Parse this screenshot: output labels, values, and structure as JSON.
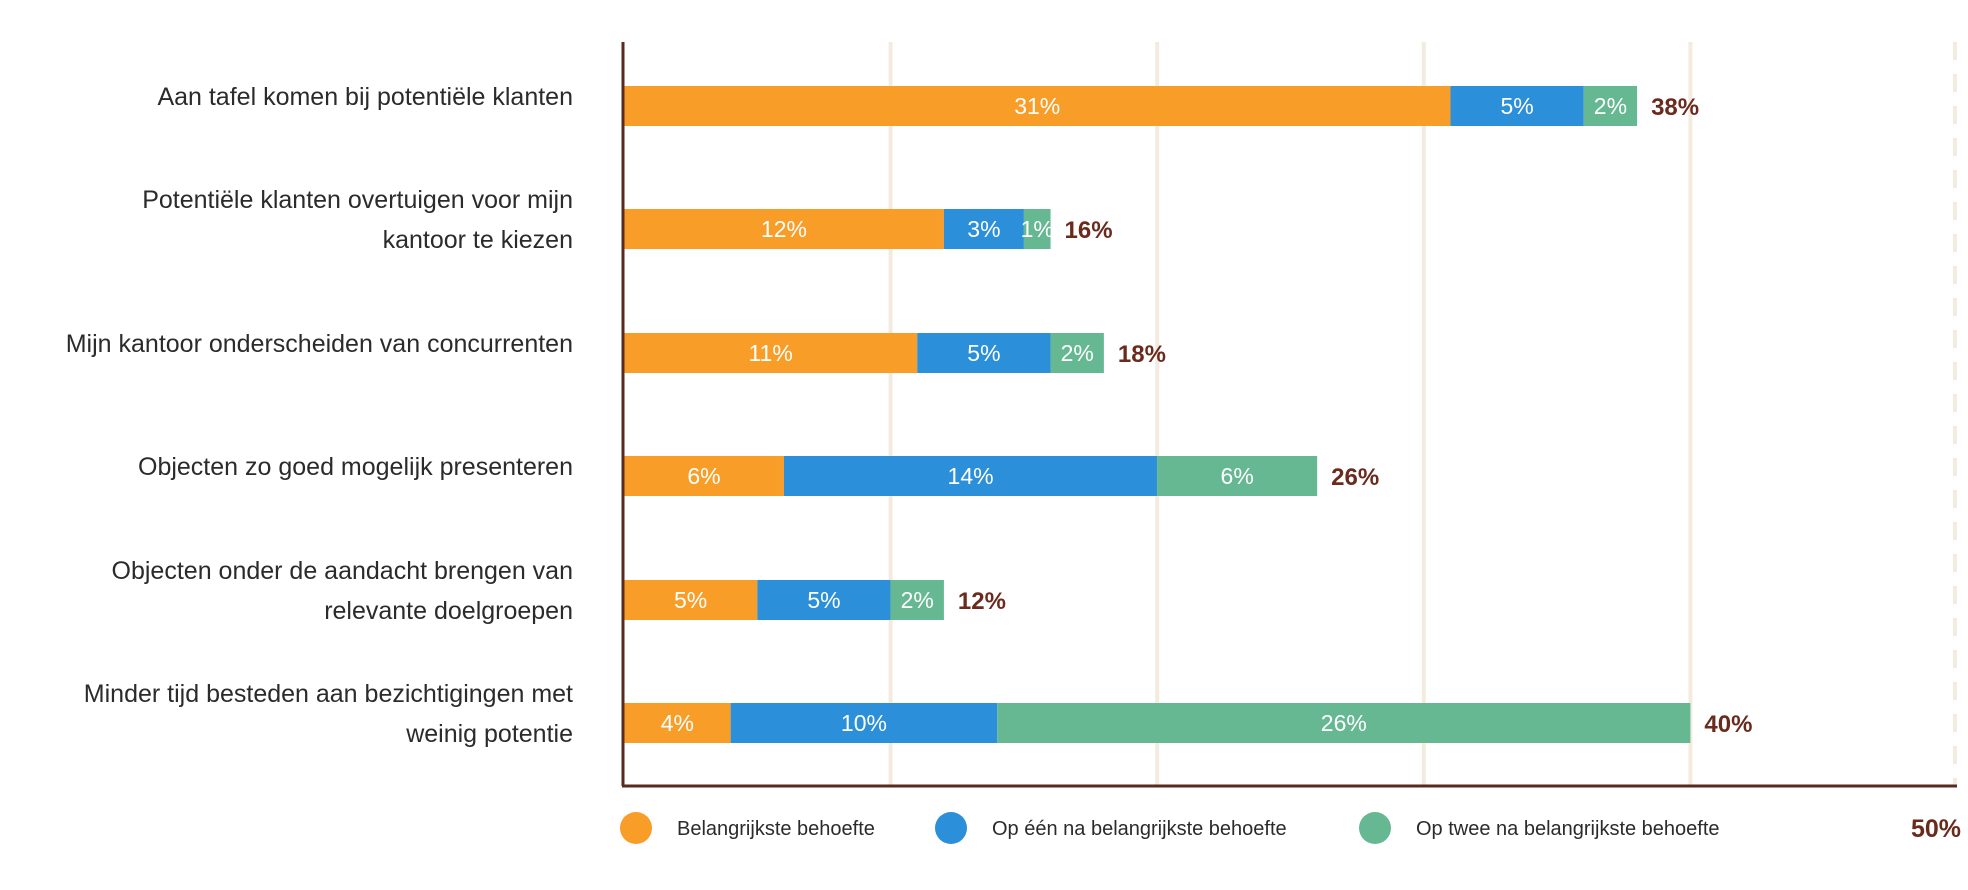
{
  "chart_data": {
    "type": "bar",
    "orientation": "horizontal",
    "stacked": true,
    "categories": [
      [
        "Aan tafel komen bij potentiële klanten"
      ],
      [
        "Potentiële klanten overtuigen voor mijn",
        "kantoor te kiezen"
      ],
      [
        "Mijn kantoor onderscheiden van concurrenten"
      ],
      [
        "Objecten zo goed mogelijk presenteren"
      ],
      [
        "Objecten onder de aandacht brengen van",
        "relevante doelgroepen"
      ],
      [
        "Minder tijd besteden aan bezichtigingen met",
        "weinig potentie"
      ]
    ],
    "series": [
      {
        "name": "Belangrijkste behoefte",
        "color": "#f99d29",
        "values": [
          31,
          12,
          11,
          6,
          5,
          4
        ]
      },
      {
        "name": "Op één na belangrijkste behoefte",
        "color": "#2b8fd9",
        "values": [
          5,
          3,
          5,
          14,
          5,
          10
        ]
      },
      {
        "name": "Op twee na belangrijkste behoefte",
        "color": "#66b892",
        "values": [
          2,
          1,
          2,
          6,
          2,
          26
        ]
      }
    ],
    "totals": [
      38,
      16,
      18,
      26,
      12,
      40
    ],
    "value_suffix": "%",
    "xlim": [
      0,
      50
    ],
    "grid": true,
    "grid_step": 10,
    "axis_max_label": "50%",
    "legend_position": "bottom",
    "title": "",
    "xlabel": "",
    "ylabel": "",
    "colors": {
      "axis": "#5a2a1e",
      "grid": "#f4ebe0",
      "total_text": "#6a2a1c",
      "label_text": "#2b2b2b"
    }
  }
}
